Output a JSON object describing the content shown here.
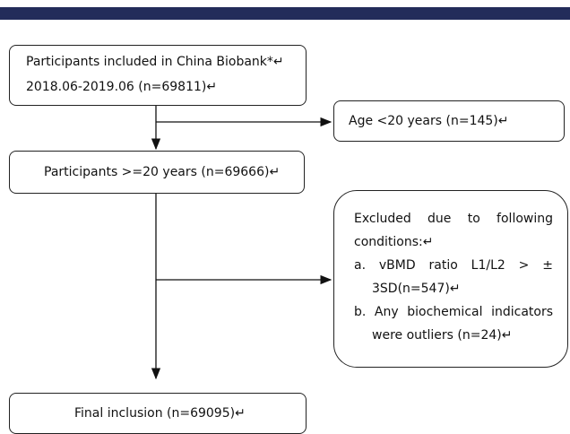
{
  "nodes": [
    {
      "lines": [
        "Participants included in China Biobank*↵",
        "2018.06-2019.06 (n=69811)↵"
      ]
    },
    {
      "lines": [
        "Age <20 years (n=145)↵"
      ]
    },
    {
      "lines": [
        "Participants >=20 years (n=69666)↵"
      ]
    },
    {
      "lines": [
        "Excluded due to following conditions:↵",
        "a. vBMD ratio L1/L2 > ± 3SD(n=547)↵",
        "b. Any biochemical indicators were outliers (n=24)↵"
      ]
    },
    {
      "lines": [
        "Final inclusion (n=69095)↵"
      ]
    }
  ]
}
